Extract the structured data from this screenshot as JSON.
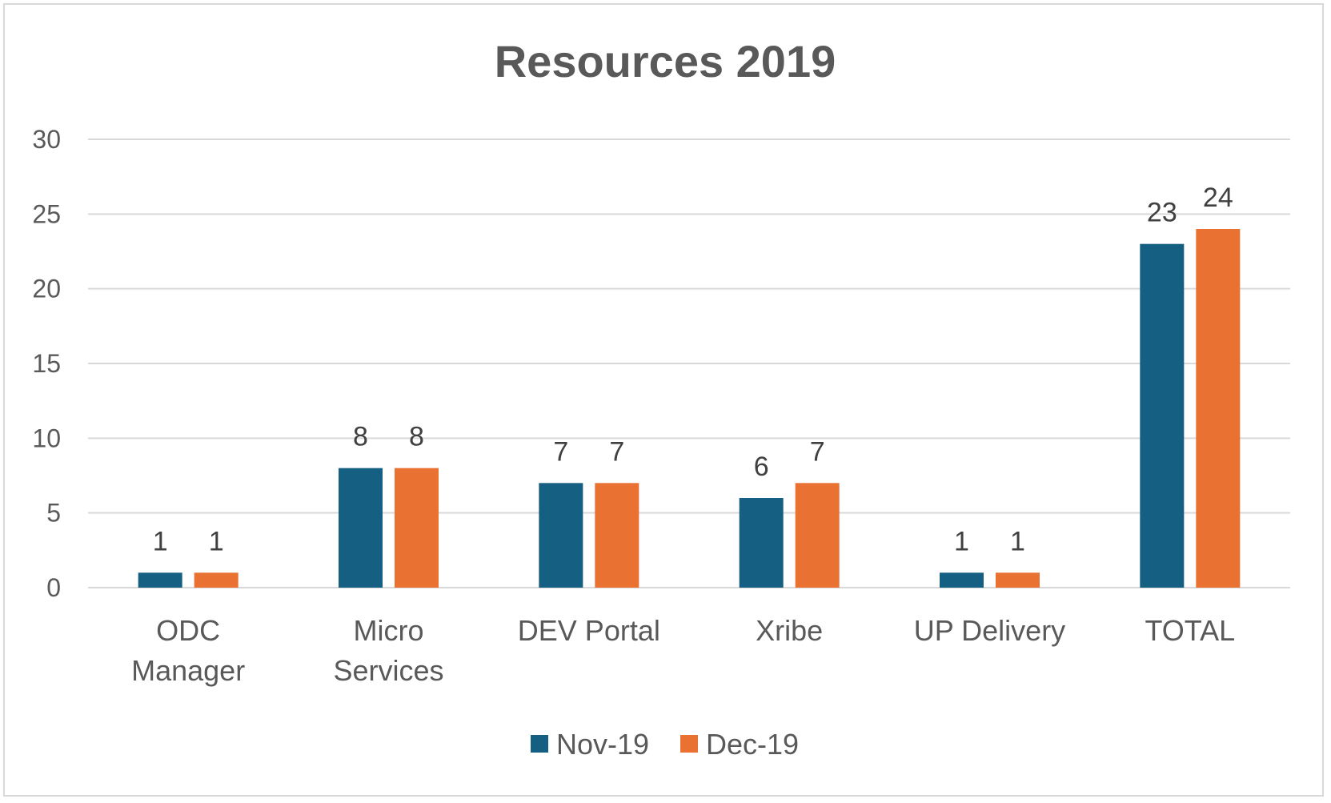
{
  "chart_data": {
    "type": "bar",
    "title": "Resources 2019",
    "xlabel": "",
    "ylabel": "",
    "categories": [
      [
        "ODC",
        "Manager"
      ],
      [
        "Micro",
        "Services"
      ],
      [
        "DEV Portal"
      ],
      [
        "Xribe"
      ],
      [
        "UP Delivery"
      ],
      [
        "TOTAL"
      ]
    ],
    "series": [
      {
        "name": "Nov-19",
        "color": "#155f82",
        "values": [
          1,
          8,
          7,
          6,
          1,
          23
        ]
      },
      {
        "name": "Dec-19",
        "color": "#e97132",
        "values": [
          1,
          8,
          7,
          7,
          1,
          24
        ]
      }
    ],
    "ylim": [
      0,
      30
    ],
    "yticks": [
      0,
      5,
      10,
      15,
      20,
      25,
      30
    ],
    "grid": true,
    "data_labels": true,
    "legend_position": "bottom"
  }
}
